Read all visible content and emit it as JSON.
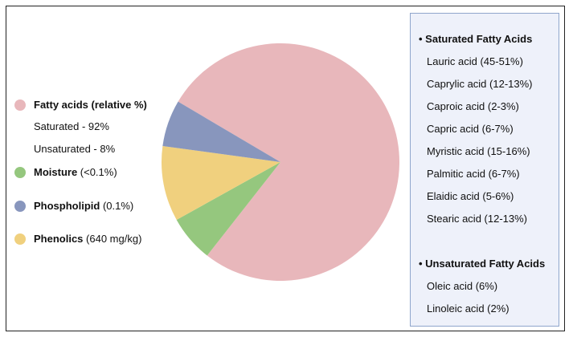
{
  "chart_data": {
    "type": "pie",
    "slices": [
      {
        "label": "Fatty acids",
        "value": 79,
        "color": "#e8b7bb"
      },
      {
        "label": "Moisture",
        "value": 6.5,
        "color": "#95c77e"
      },
      {
        "label": "Phenolics",
        "value": 10.5,
        "color": "#f0d07e"
      },
      {
        "label": "Phospholipid",
        "value": 6.5,
        "color": "#8896bd"
      }
    ]
  },
  "legend": {
    "fatty": {
      "bold": "Fatty acids (relative %)",
      "rest": "",
      "color": "#e8b7bb"
    },
    "saturated": "Saturated - 92%",
    "unsaturated": "Unsaturated - 8%",
    "moisture": {
      "bold": "Moisture",
      "rest": " (<0.1%)",
      "color": "#95c77e"
    },
    "phospholipid": {
      "bold": "Phospholipid",
      "rest": " (0.1%)",
      "color": "#8896bd"
    },
    "phenolics": {
      "bold": "Phenolics",
      "rest": " (640 mg/kg)",
      "color": "#f0d07e"
    }
  },
  "panel": {
    "saturated_heading": "• Saturated Fatty Acids",
    "saturated_items": [
      "Lauric acid (45-51%)",
      "Caprylic acid (12-13%)",
      "Caproic acid (2-3%)",
      "Capric acid (6-7%)",
      "Myristic acid (15-16%)",
      "Palmitic acid (6-7%)",
      "Elaidic acid (5-6%)",
      "Stearic acid (12-13%)"
    ],
    "unsaturated_heading": "• Unsaturated Fatty Acids",
    "unsaturated_items": [
      "Oleic acid (6%)",
      "Linoleic acid (2%)"
    ]
  }
}
